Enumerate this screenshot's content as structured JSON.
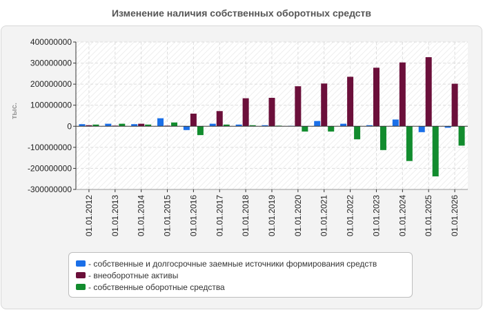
{
  "chart_data": {
    "type": "bar",
    "title": "Изменение наличия собственных оборотных средств",
    "ylabel": "тыс.",
    "xlabel": "",
    "ylim": [
      -300000000,
      400000000
    ],
    "yticks": [
      400000000,
      300000000,
      200000000,
      100000000,
      0,
      -100000000,
      -200000000,
      -300000000
    ],
    "grid": true,
    "legend_position": "bottom",
    "categories": [
      "01.01.2012",
      "01.01.2013",
      "01.01.2014",
      "01.01.2015",
      "01.01.2016",
      "01.01.2017",
      "01.01.2018",
      "01.01.2019",
      "01.01.2020",
      "01.01.2021",
      "01.01.2022",
      "01.01.2023",
      "01.01.2024",
      "01.01.2025",
      "01.01.2026"
    ],
    "series": [
      {
        "name": "- собственные и долгосрочные заемные источники формирования средств",
        "color": "#1a6fe8",
        "values": [
          10000000,
          12000000,
          10000000,
          38000000,
          -18000000,
          12000000,
          8000000,
          5000000,
          2000000,
          25000000,
          12000000,
          5000000,
          32000000,
          -28000000,
          -7000000
        ]
      },
      {
        "name": "- внеоборотные активы",
        "color": "#6b0f3a",
        "values": [
          5000000,
          3000000,
          12000000,
          3000000,
          60000000,
          72000000,
          133000000,
          135000000,
          190000000,
          203000000,
          235000000,
          278000000,
          303000000,
          328000000,
          202000000
        ]
      },
      {
        "name": "- собственные оборотные средства",
        "color": "#128c2e",
        "values": [
          8000000,
          12000000,
          8000000,
          18000000,
          -42000000,
          8000000,
          5000000,
          3000000,
          -25000000,
          -25000000,
          -62000000,
          -113000000,
          -165000000,
          -238000000,
          -92000000
        ]
      }
    ]
  }
}
